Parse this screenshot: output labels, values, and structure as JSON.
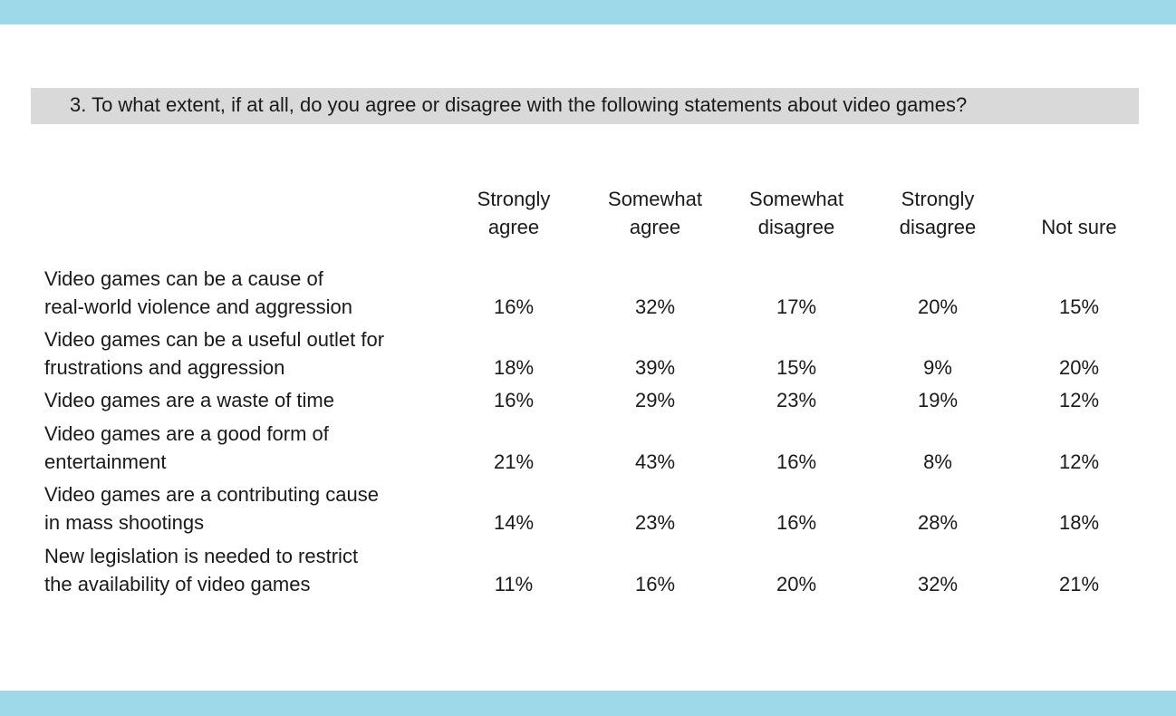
{
  "question": "3. To what extent, if at all, do you agree or disagree with the following statements about video games?",
  "columns": [
    {
      "line1": "Strongly",
      "line2": "agree"
    },
    {
      "line1": "Somewhat",
      "line2": "agree"
    },
    {
      "line1": "Somewhat",
      "line2": "disagree"
    },
    {
      "line1": "Strongly",
      "line2": "disagree"
    },
    {
      "line1": "",
      "line2": "Not sure"
    }
  ],
  "rows": [
    {
      "line1": "Video games can be a cause of",
      "line2": "real-world violence and aggression",
      "values": [
        "16%",
        "32%",
        "17%",
        "20%",
        "15%"
      ]
    },
    {
      "line1": "Video games can be a useful outlet for",
      "line2": "frustrations and aggression",
      "values": [
        "18%",
        "39%",
        "15%",
        "9%",
        "20%"
      ]
    },
    {
      "line1": "",
      "line2": "Video games are a waste of time",
      "values": [
        "16%",
        "29%",
        "23%",
        "19%",
        "12%"
      ]
    },
    {
      "line1": "Video games are a good form of",
      "line2": "entertainment",
      "values": [
        "21%",
        "43%",
        "16%",
        "8%",
        "12%"
      ]
    },
    {
      "line1": "Video games are a contributing cause",
      "line2": "in mass shootings",
      "values": [
        "14%",
        "23%",
        "16%",
        "28%",
        "18%"
      ]
    },
    {
      "line1": "New legislation is needed to restrict",
      "line2": "the availability of video games",
      "values": [
        "11%",
        "16%",
        "20%",
        "32%",
        "21%"
      ]
    }
  ],
  "colors": {
    "band": "#9cd9e9",
    "question_bar": "#d9d9d9"
  }
}
